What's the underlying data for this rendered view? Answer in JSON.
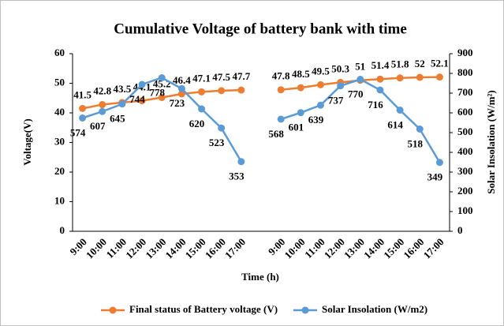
{
  "chart_data": {
    "type": "line",
    "title": "Cumulative Voltage of battery bank with time",
    "x_label": "Time (h)",
    "y_label": "Voltage(V)",
    "y2_label": "Solar Insolation (W/m²)",
    "categories": [
      "9:00",
      "10:00",
      "11:00",
      "12:00",
      "13:00",
      "14:00",
      "15:00",
      "16:00",
      "17:00",
      null,
      "9:00",
      "10:00",
      "11:00",
      "12:00",
      "13:00",
      "14:00",
      "15:00",
      "16:00",
      "17:00"
    ],
    "series": [
      {
        "name": "Final status of Battery voltage (V)",
        "color": "#ed7d31",
        "values": [
          41.5,
          42.8,
          43.5,
          44.1,
          45.2,
          46.4,
          47.1,
          47.5,
          47.7,
          null,
          47.8,
          48.5,
          49.5,
          50.3,
          51,
          51.4,
          51.8,
          52,
          52.1
        ]
      },
      {
        "name": "Solar Insolation (W/m2)",
        "color": "#5b9bd5",
        "axis": "y2",
        "values": [
          574,
          607,
          645,
          744,
          778,
          723,
          620,
          523,
          353,
          null,
          568,
          601,
          639,
          737,
          770,
          716,
          614,
          518,
          349
        ]
      }
    ],
    "ylim": [
      0,
      60
    ],
    "yticks": [
      0,
      10,
      20,
      30,
      40,
      50,
      60
    ],
    "y2lim": [
      0,
      900
    ],
    "y2ticks": [
      0,
      100,
      200,
      300,
      400,
      500,
      600,
      700,
      800,
      900
    ],
    "grid": false,
    "legend": "bottom"
  }
}
